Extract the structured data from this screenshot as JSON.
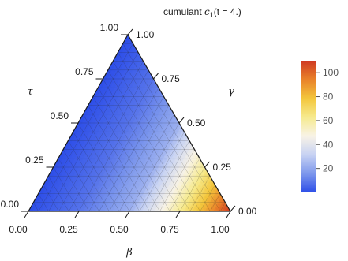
{
  "chart_data": {
    "type": "heatmap",
    "plot": "ternary",
    "title": "cumulant c₁(t = 4.)",
    "title_parts": {
      "prefix": "cumulant ",
      "symbol": "c",
      "subscript": "1",
      "suffix": "(t = 4.)"
    },
    "axes": {
      "bottom": {
        "label": "β",
        "ticks": [
          "0.00",
          "0.25",
          "0.50",
          "0.75",
          "1.00"
        ]
      },
      "left": {
        "label": "τ",
        "ticks": [
          "0.00",
          "0.25",
          "0.50",
          "0.75",
          "1.00"
        ]
      },
      "right": {
        "label": "γ",
        "ticks": [
          "1.00",
          "0.75",
          "0.50",
          "0.25",
          "0.00"
        ]
      }
    },
    "grid": true,
    "grid_divisions": 20,
    "field": {
      "description_of_values": "value varies with beta; ~0 at beta=0 rising to ~110 at beta=1",
      "beta_profile": [
        [
          0.0,
          0
        ],
        [
          0.25,
          8
        ],
        [
          0.5,
          22
        ],
        [
          0.65,
          45
        ],
        [
          0.75,
          62
        ],
        [
          0.85,
          80
        ],
        [
          0.95,
          100
        ],
        [
          1.0,
          110
        ]
      ]
    },
    "colorbar": {
      "min": 0,
      "max": 110,
      "ticks": [
        "20",
        "40",
        "60",
        "80",
        "100"
      ],
      "tick_values": [
        20,
        40,
        60,
        80,
        100
      ],
      "colors": [
        "#2d4ee8",
        "#7d97ec",
        "#c7d2f3",
        "#f8f3e6",
        "#f6ea8e",
        "#f3c63c",
        "#e9822a",
        "#cf3a23"
      ]
    }
  }
}
